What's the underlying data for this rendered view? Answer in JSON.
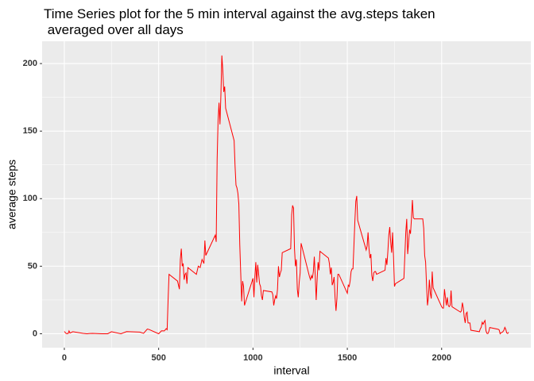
{
  "chart_data": {
    "type": "line",
    "title": "Time Series plot for the 5 min interval against the avg.steps taken\n averaged over all days",
    "x_label": "interval",
    "y_label": "average steps",
    "color": "#ff0000",
    "grid": true,
    "x": [
      0,
      10,
      20,
      25,
      30,
      45,
      100,
      120,
      135,
      150,
      200,
      230,
      250,
      300,
      330,
      400,
      420,
      440,
      450,
      500,
      515,
      530,
      540,
      545,
      550,
      555,
      600,
      610,
      615,
      620,
      625,
      630,
      635,
      640,
      645,
      650,
      655,
      700,
      710,
      720,
      730,
      740,
      745,
      750,
      800,
      805,
      810,
      815,
      820,
      825,
      830,
      835,
      840,
      845,
      850,
      855,
      900,
      905,
      910,
      915,
      920,
      925,
      930,
      935,
      940,
      945,
      950,
      955,
      1000,
      1005,
      1010,
      1015,
      1020,
      1025,
      1030,
      1035,
      1040,
      1045,
      1050,
      1055,
      1100,
      1105,
      1110,
      1115,
      1120,
      1125,
      1130,
      1135,
      1140,
      1145,
      1150,
      1155,
      1200,
      1205,
      1210,
      1215,
      1220,
      1225,
      1230,
      1235,
      1240,
      1245,
      1250,
      1255,
      1300,
      1305,
      1310,
      1315,
      1320,
      1325,
      1330,
      1335,
      1340,
      1345,
      1350,
      1355,
      1400,
      1405,
      1410,
      1415,
      1420,
      1425,
      1430,
      1435,
      1440,
      1445,
      1450,
      1455,
      1500,
      1505,
      1510,
      1515,
      1520,
      1525,
      1530,
      1535,
      1540,
      1545,
      1550,
      1555,
      1600,
      1605,
      1610,
      1615,
      1620,
      1625,
      1630,
      1635,
      1640,
      1645,
      1650,
      1655,
      1700,
      1705,
      1710,
      1715,
      1720,
      1725,
      1730,
      1735,
      1740,
      1745,
      1750,
      1755,
      1800,
      1805,
      1810,
      1815,
      1820,
      1825,
      1830,
      1835,
      1840,
      1845,
      1850,
      1855,
      1900,
      1905,
      1910,
      1915,
      1920,
      1925,
      1930,
      1935,
      1940,
      1945,
      1950,
      1955,
      2000,
      2005,
      2010,
      2015,
      2020,
      2025,
      2030,
      2035,
      2040,
      2045,
      2050,
      2055,
      2100,
      2105,
      2110,
      2115,
      2120,
      2125,
      2130,
      2135,
      2140,
      2145,
      2150,
      2155,
      2200,
      2205,
      2210,
      2215,
      2220,
      2225,
      2230,
      2235,
      2240,
      2245,
      2250,
      2255,
      2300,
      2305,
      2310,
      2315,
      2320,
      2325,
      2330,
      2335,
      2340,
      2345,
      2350,
      2355
    ],
    "values": [
      1.7,
      0.1,
      0.1,
      2.1,
      0.5,
      1.5,
      0.3,
      0,
      0.2,
      0.3,
      0,
      0,
      1.5,
      0,
      1.6,
      1.2,
      0.3,
      3.5,
      3.1,
      0,
      2.2,
      2.1,
      3.8,
      3,
      25,
      44,
      39,
      33,
      55,
      63,
      50,
      52,
      40,
      44,
      45,
      37,
      49,
      44,
      50,
      49,
      55,
      52,
      69,
      58,
      73,
      68,
      129,
      158,
      171,
      155,
      177,
      206,
      195,
      179,
      183,
      167,
      143,
      124,
      110,
      108,
      104,
      96,
      66,
      45,
      24,
      39,
      35,
      21,
      41,
      27,
      42,
      53,
      38,
      51,
      44,
      37,
      35,
      28,
      25,
      32,
      31,
      29,
      21,
      25,
      28,
      26,
      33,
      50,
      42,
      45,
      47,
      60,
      63,
      88,
      95,
      93,
      63,
      50,
      55,
      33,
      27,
      38,
      45,
      67,
      42,
      40,
      43,
      41,
      46,
      57,
      43,
      25,
      40,
      53,
      47,
      61,
      56,
      52,
      44,
      49,
      36,
      38,
      42,
      27,
      17,
      26,
      44,
      44,
      30,
      36,
      35,
      39,
      46,
      48,
      48,
      65,
      83,
      98,
      102,
      84,
      62,
      65,
      75,
      63,
      56,
      59,
      43,
      39,
      45,
      46,
      46,
      44,
      47,
      56,
      51,
      61,
      73,
      79,
      68,
      60,
      75,
      57,
      35,
      37,
      41,
      58,
      75,
      85,
      59,
      68,
      77,
      74,
      85,
      99,
      86,
      85,
      85,
      78,
      58,
      53,
      36,
      21,
      27,
      40,
      30,
      26,
      46,
      34,
      20,
      19,
      19,
      33,
      27,
      21,
      27,
      21,
      20,
      21,
      32,
      20,
      16,
      17,
      23,
      19,
      12,
      8,
      15,
      16,
      8,
      8,
      8,
      2.6,
      1.5,
      3.7,
      4.8,
      8.5,
      7.1,
      8.7,
      9.8,
      2.2,
      0.3,
      0.1,
      1.6,
      4.6,
      3.3,
      2.8,
      0,
      0.8,
      0.96,
      1.6,
      2.6,
      4.7,
      3.3,
      0.6,
      0.2,
      1.1
    ],
    "xlim": [
      -117.75,
      2472.75
    ],
    "xticks": [
      0,
      500,
      1000,
      1500,
      2000
    ],
    "ylim": [
      -10.3,
      216.5
    ],
    "yticks": [
      0,
      50,
      100,
      150,
      200
    ]
  }
}
